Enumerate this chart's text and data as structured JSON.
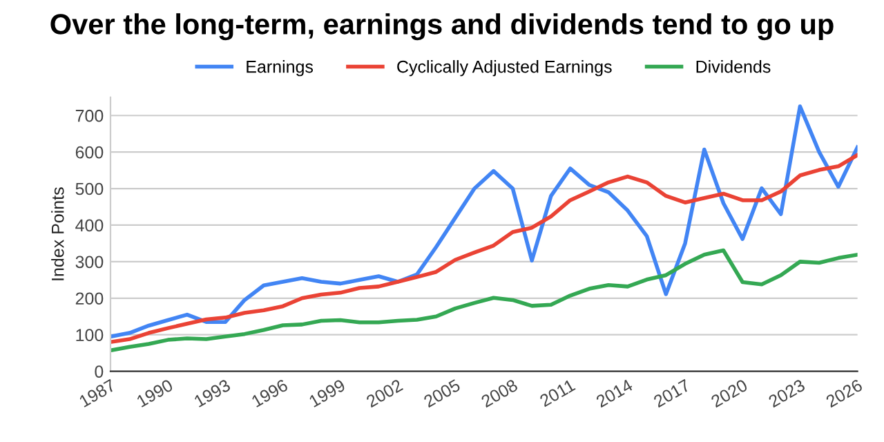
{
  "chart_data": {
    "type": "line",
    "title": "Over the long-term, earnings and dividends tend to go up",
    "ylabel": "Index Points",
    "x": [
      1987,
      1988,
      1989,
      1990,
      1991,
      1992,
      1993,
      1994,
      1995,
      1996,
      1997,
      1998,
      1999,
      2000,
      2001,
      2002,
      2003,
      2004,
      2005,
      2006,
      2007,
      2008,
      2009,
      2010,
      2011,
      2012,
      2013,
      2014,
      2015,
      2016,
      2017,
      2018,
      2019,
      2020,
      2021,
      2022,
      2023,
      2024,
      2025,
      2026
    ],
    "series": [
      {
        "name": "Earnings",
        "color": "#4285f4",
        "values": [
          95,
          105,
          125,
          140,
          155,
          135,
          135,
          195,
          235,
          245,
          255,
          245,
          240,
          250,
          260,
          245,
          265,
          340,
          420,
          500,
          548,
          500,
          303,
          480,
          555,
          510,
          490,
          440,
          370,
          211,
          350,
          607,
          460,
          362,
          501,
          430,
          725,
          600,
          505,
          613
        ]
      },
      {
        "name": "Cyclically Adjusted Earnings",
        "color": "#ea4335",
        "values": [
          80,
          88,
          105,
          118,
          130,
          142,
          147,
          160,
          167,
          178,
          200,
          210,
          215,
          228,
          232,
          245,
          258,
          272,
          305,
          325,
          344,
          381,
          393,
          424,
          468,
          492,
          517,
          533,
          517,
          480,
          462,
          474,
          486,
          468,
          468,
          492,
          536,
          551,
          561,
          592
        ]
      },
      {
        "name": "Dividends",
        "color": "#34a853",
        "values": [
          57,
          67,
          75,
          86,
          90,
          88,
          95,
          102,
          113,
          126,
          128,
          138,
          140,
          134,
          134,
          138,
          141,
          150,
          172,
          187,
          201,
          195,
          179,
          182,
          207,
          226,
          236,
          232,
          251,
          263,
          294,
          319,
          331,
          244,
          238,
          263,
          300,
          297,
          310,
          319
        ]
      }
    ],
    "xlim": [
      1987,
      2026
    ],
    "xticks": [
      1987,
      1990,
      1993,
      1996,
      1999,
      2002,
      2005,
      2008,
      2011,
      2014,
      2017,
      2020,
      2023,
      2026
    ],
    "ylim": [
      0,
      750
    ],
    "yticks": [
      0,
      100,
      200,
      300,
      400,
      500,
      600,
      700
    ],
    "grid": "y",
    "legend": "top",
    "marker": "none",
    "line_style": "solid"
  }
}
